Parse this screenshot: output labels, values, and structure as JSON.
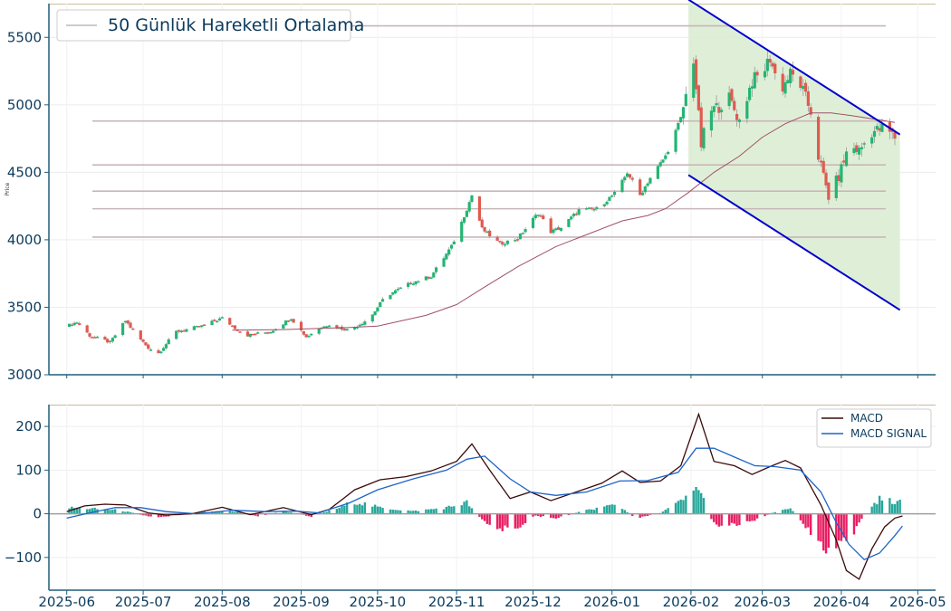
{
  "chart_data": [
    {
      "type": "candlestick",
      "ylabel": "Price",
      "ylim": [
        3000,
        5750
      ],
      "yticks": [
        3000,
        3500,
        4000,
        4500,
        5000,
        5500
      ],
      "ytick_labels": [
        "3000",
        "3500",
        "4000",
        "4500",
        "5000",
        "5500"
      ],
      "legend": {
        "label": "50 Günlük Hareketli Ortalama",
        "position": "top-left"
      },
      "grid": true,
      "colors": {
        "up": "#22b573",
        "down": "#e05a4f",
        "ma": "#a0506a",
        "channel": "#0000cc",
        "channel_fill": "#dcedd3",
        "level_line": "#c9b6b9",
        "axis": "#1f5f7a"
      },
      "horizontal_levels": [
        5585,
        4880,
        4555,
        4360,
        4230,
        4020
      ],
      "channel": {
        "upper": [
          {
            "x": "2026-01-31",
            "y": 5780
          },
          {
            "x": "2026-04-24",
            "y": 4780
          }
        ],
        "lower": [
          {
            "x": "2026-01-31",
            "y": 4480
          },
          {
            "x": "2026-04-24",
            "y": 3480
          }
        ]
      },
      "keypoints": [
        {
          "x": "2025-06-01",
          "y": 3360
        },
        {
          "x": "2025-06-05",
          "y": 3390
        },
        {
          "x": "2025-06-10",
          "y": 3290
        },
        {
          "x": "2025-06-18",
          "y": 3240
        },
        {
          "x": "2025-06-24",
          "y": 3400
        },
        {
          "x": "2025-06-29",
          "y": 3280
        },
        {
          "x": "2025-07-03",
          "y": 3200
        },
        {
          "x": "2025-07-07",
          "y": 3160
        },
        {
          "x": "2025-07-14",
          "y": 3320
        },
        {
          "x": "2025-07-24",
          "y": 3360
        },
        {
          "x": "2025-08-01",
          "y": 3420
        },
        {
          "x": "2025-08-10",
          "y": 3290
        },
        {
          "x": "2025-08-20",
          "y": 3320
        },
        {
          "x": "2025-08-28",
          "y": 3420
        },
        {
          "x": "2025-09-03",
          "y": 3280
        },
        {
          "x": "2025-09-10",
          "y": 3370
        },
        {
          "x": "2025-09-20",
          "y": 3330
        },
        {
          "x": "2025-09-28",
          "y": 3420
        },
        {
          "x": "2025-10-04",
          "y": 3580
        },
        {
          "x": "2025-10-14",
          "y": 3680
        },
        {
          "x": "2025-10-22",
          "y": 3730
        },
        {
          "x": "2025-10-30",
          "y": 3950
        },
        {
          "x": "2025-11-03",
          "y": 4130
        },
        {
          "x": "2025-11-07",
          "y": 4330
        },
        {
          "x": "2025-11-11",
          "y": 4080
        },
        {
          "x": "2025-11-18",
          "y": 3970
        },
        {
          "x": "2025-11-25",
          "y": 4010
        },
        {
          "x": "2025-12-03",
          "y": 4200
        },
        {
          "x": "2025-12-08",
          "y": 4060
        },
        {
          "x": "2025-12-12",
          "y": 4090
        },
        {
          "x": "2025-12-19",
          "y": 4220
        },
        {
          "x": "2025-12-26",
          "y": 4230
        },
        {
          "x": "2026-01-03",
          "y": 4360
        },
        {
          "x": "2026-01-07",
          "y": 4500
        },
        {
          "x": "2026-01-12",
          "y": 4330
        },
        {
          "x": "2026-01-16",
          "y": 4460
        },
        {
          "x": "2026-01-22",
          "y": 4620
        },
        {
          "x": "2026-01-28",
          "y": 4900
        },
        {
          "x": "2026-01-31",
          "y": 5150
        },
        {
          "x": "2026-02-02",
          "y": 5340
        },
        {
          "x": "2026-02-05",
          "y": 4700
        },
        {
          "x": "2026-02-08",
          "y": 4950
        },
        {
          "x": "2026-02-12",
          "y": 4990
        },
        {
          "x": "2026-02-16",
          "y": 5050
        },
        {
          "x": "2026-02-20",
          "y": 4880
        },
        {
          "x": "2026-02-25",
          "y": 5180
        },
        {
          "x": "2026-03-01",
          "y": 5230
        },
        {
          "x": "2026-03-04",
          "y": 5350
        },
        {
          "x": "2026-03-08",
          "y": 5100
        },
        {
          "x": "2026-03-12",
          "y": 5230
        },
        {
          "x": "2026-03-16",
          "y": 5150
        },
        {
          "x": "2026-03-20",
          "y": 4950
        },
        {
          "x": "2026-03-23",
          "y": 4620
        },
        {
          "x": "2026-03-27",
          "y": 4320
        },
        {
          "x": "2026-03-31",
          "y": 4470
        },
        {
          "x": "2026-04-04",
          "y": 4700
        },
        {
          "x": "2026-04-08",
          "y": 4660
        },
        {
          "x": "2026-04-13",
          "y": 4800
        },
        {
          "x": "2026-04-18",
          "y": 4830
        },
        {
          "x": "2026-04-22",
          "y": 4760
        }
      ],
      "ma_points": [
        {
          "x": "2025-08-05",
          "y": 3330
        },
        {
          "x": "2025-08-25",
          "y": 3335
        },
        {
          "x": "2025-09-20",
          "y": 3350
        },
        {
          "x": "2025-10-01",
          "y": 3360
        },
        {
          "x": "2025-10-20",
          "y": 3440
        },
        {
          "x": "2025-11-01",
          "y": 3520
        },
        {
          "x": "2025-11-12",
          "y": 3650
        },
        {
          "x": "2025-11-25",
          "y": 3800
        },
        {
          "x": "2025-12-10",
          "y": 3950
        },
        {
          "x": "2025-12-25",
          "y": 4060
        },
        {
          "x": "2026-01-05",
          "y": 4140
        },
        {
          "x": "2026-01-15",
          "y": 4180
        },
        {
          "x": "2026-01-22",
          "y": 4230
        },
        {
          "x": "2026-01-31",
          "y": 4350
        },
        {
          "x": "2026-02-10",
          "y": 4500
        },
        {
          "x": "2026-02-20",
          "y": 4620
        },
        {
          "x": "2026-03-01",
          "y": 4760
        },
        {
          "x": "2026-03-10",
          "y": 4860
        },
        {
          "x": "2026-03-20",
          "y": 4940
        },
        {
          "x": "2026-03-28",
          "y": 4940
        },
        {
          "x": "2026-04-05",
          "y": 4920
        },
        {
          "x": "2026-04-12",
          "y": 4900
        },
        {
          "x": "2026-04-22",
          "y": 4870
        }
      ]
    },
    {
      "type": "line+bar",
      "ylim": [
        -175,
        250
      ],
      "yticks": [
        -100,
        0,
        100,
        200
      ],
      "ytick_labels": [
        "−100",
        "0",
        "100",
        "200"
      ],
      "xlim": [
        "2025-05-25",
        "2026-05-08"
      ],
      "xticks": [
        "2025-06-01",
        "2025-07-01",
        "2025-08-01",
        "2025-09-01",
        "2025-10-01",
        "2025-11-01",
        "2025-12-01",
        "2026-01-01",
        "2026-02-01",
        "2026-03-01",
        "2026-04-01",
        "2026-05-01"
      ],
      "xtick_labels": [
        "2025-06",
        "2025-07",
        "2025-08",
        "2025-09",
        "2025-10",
        "2025-11",
        "2025-12",
        "2026-01",
        "2026-02",
        "2026-03",
        "2026-04",
        "2026-05"
      ],
      "legend": {
        "position": "top-right"
      },
      "series": [
        {
          "name": "MACD",
          "color": "#3a0a0a",
          "points": [
            {
              "x": "2025-06-01",
              "y": 5
            },
            {
              "x": "2025-06-08",
              "y": 18
            },
            {
              "x": "2025-06-16",
              "y": 22
            },
            {
              "x": "2025-06-24",
              "y": 20
            },
            {
              "x": "2025-07-03",
              "y": 2
            },
            {
              "x": "2025-07-10",
              "y": -3
            },
            {
              "x": "2025-07-20",
              "y": 0
            },
            {
              "x": "2025-08-01",
              "y": 15
            },
            {
              "x": "2025-08-12",
              "y": -2
            },
            {
              "x": "2025-08-25",
              "y": 14
            },
            {
              "x": "2025-09-05",
              "y": -2
            },
            {
              "x": "2025-09-12",
              "y": 10
            },
            {
              "x": "2025-09-22",
              "y": 55
            },
            {
              "x": "2025-10-02",
              "y": 78
            },
            {
              "x": "2025-10-12",
              "y": 85
            },
            {
              "x": "2025-10-22",
              "y": 98
            },
            {
              "x": "2025-11-01",
              "y": 120
            },
            {
              "x": "2025-11-07",
              "y": 160
            },
            {
              "x": "2025-11-14",
              "y": 100
            },
            {
              "x": "2025-11-22",
              "y": 35
            },
            {
              "x": "2025-11-30",
              "y": 50
            },
            {
              "x": "2025-12-08",
              "y": 30
            },
            {
              "x": "2025-12-18",
              "y": 50
            },
            {
              "x": "2025-12-28",
              "y": 70
            },
            {
              "x": "2026-01-05",
              "y": 98
            },
            {
              "x": "2026-01-12",
              "y": 72
            },
            {
              "x": "2026-01-20",
              "y": 75
            },
            {
              "x": "2026-01-28",
              "y": 110
            },
            {
              "x": "2026-02-04",
              "y": 228
            },
            {
              "x": "2026-02-10",
              "y": 120
            },
            {
              "x": "2026-02-18",
              "y": 110
            },
            {
              "x": "2026-02-25",
              "y": 90
            },
            {
              "x": "2026-03-04",
              "y": 108
            },
            {
              "x": "2026-03-10",
              "y": 122
            },
            {
              "x": "2026-03-16",
              "y": 105
            },
            {
              "x": "2026-03-24",
              "y": 20
            },
            {
              "x": "2026-03-30",
              "y": -60
            },
            {
              "x": "2026-04-03",
              "y": -130
            },
            {
              "x": "2026-04-08",
              "y": -150
            },
            {
              "x": "2026-04-13",
              "y": -80
            },
            {
              "x": "2026-04-18",
              "y": -30
            },
            {
              "x": "2026-04-22",
              "y": -10
            },
            {
              "x": "2026-04-25",
              "y": -5
            }
          ]
        },
        {
          "name": "MACD SIGNAL",
          "color": "#1e63c8",
          "points": [
            {
              "x": "2025-06-01",
              "y": -10
            },
            {
              "x": "2025-06-10",
              "y": 2
            },
            {
              "x": "2025-06-20",
              "y": 14
            },
            {
              "x": "2025-06-30",
              "y": 14
            },
            {
              "x": "2025-07-10",
              "y": 5
            },
            {
              "x": "2025-07-22",
              "y": 0
            },
            {
              "x": "2025-08-05",
              "y": 8
            },
            {
              "x": "2025-08-18",
              "y": 5
            },
            {
              "x": "2025-08-30",
              "y": 6
            },
            {
              "x": "2025-09-08",
              "y": 2
            },
            {
              "x": "2025-09-20",
              "y": 25
            },
            {
              "x": "2025-10-01",
              "y": 55
            },
            {
              "x": "2025-10-15",
              "y": 80
            },
            {
              "x": "2025-10-28",
              "y": 100
            },
            {
              "x": "2025-11-05",
              "y": 125
            },
            {
              "x": "2025-11-12",
              "y": 132
            },
            {
              "x": "2025-11-22",
              "y": 80
            },
            {
              "x": "2025-11-30",
              "y": 50
            },
            {
              "x": "2025-12-10",
              "y": 42
            },
            {
              "x": "2025-12-22",
              "y": 50
            },
            {
              "x": "2026-01-04",
              "y": 75
            },
            {
              "x": "2026-01-15",
              "y": 76
            },
            {
              "x": "2026-01-27",
              "y": 95
            },
            {
              "x": "2026-02-03",
              "y": 150
            },
            {
              "x": "2026-02-10",
              "y": 150
            },
            {
              "x": "2026-02-18",
              "y": 130
            },
            {
              "x": "2026-02-26",
              "y": 110
            },
            {
              "x": "2026-03-06",
              "y": 108
            },
            {
              "x": "2026-03-16",
              "y": 100
            },
            {
              "x": "2026-03-24",
              "y": 50
            },
            {
              "x": "2026-03-30",
              "y": -20
            },
            {
              "x": "2026-04-04",
              "y": -70
            },
            {
              "x": "2026-04-10",
              "y": -105
            },
            {
              "x": "2026-04-16",
              "y": -90
            },
            {
              "x": "2026-04-22",
              "y": -50
            },
            {
              "x": "2026-04-25",
              "y": -28
            }
          ]
        }
      ],
      "histogram": {
        "colors": {
          "positive": "#26a69a",
          "negative": "#e91e63"
        },
        "envelope": [
          {
            "x": "2025-06-01",
            "y": 14
          },
          {
            "x": "2025-06-10",
            "y": 12
          },
          {
            "x": "2025-06-22",
            "y": 8
          },
          {
            "x": "2025-07-05",
            "y": -8
          },
          {
            "x": "2025-07-15",
            "y": -3
          },
          {
            "x": "2025-07-25",
            "y": 4
          },
          {
            "x": "2025-08-05",
            "y": 6
          },
          {
            "x": "2025-08-15",
            "y": -6
          },
          {
            "x": "2025-08-25",
            "y": 6
          },
          {
            "x": "2025-09-05",
            "y": -6
          },
          {
            "x": "2025-09-15",
            "y": 12
          },
          {
            "x": "2025-09-22",
            "y": 28
          },
          {
            "x": "2025-10-02",
            "y": 14
          },
          {
            "x": "2025-10-15",
            "y": 6
          },
          {
            "x": "2025-10-28",
            "y": 14
          },
          {
            "x": "2025-11-05",
            "y": 26
          },
          {
            "x": "2025-11-08",
            "y": 5
          },
          {
            "x": "2025-11-16",
            "y": -38
          },
          {
            "x": "2025-11-24",
            "y": -32
          },
          {
            "x": "2025-12-02",
            "y": -5
          },
          {
            "x": "2025-12-10",
            "y": -10
          },
          {
            "x": "2025-12-22",
            "y": 8
          },
          {
            "x": "2026-01-03",
            "y": 22
          },
          {
            "x": "2026-01-10",
            "y": -10
          },
          {
            "x": "2026-01-20",
            "y": 2
          },
          {
            "x": "2026-01-30",
            "y": 35
          },
          {
            "x": "2026-02-04",
            "y": 62
          },
          {
            "x": "2026-02-10",
            "y": -25
          },
          {
            "x": "2026-02-22",
            "y": -22
          },
          {
            "x": "2026-03-04",
            "y": 0
          },
          {
            "x": "2026-03-12",
            "y": 14
          },
          {
            "x": "2026-03-20",
            "y": -40
          },
          {
            "x": "2026-03-28",
            "y": -88
          },
          {
            "x": "2026-04-04",
            "y": -60
          },
          {
            "x": "2026-04-10",
            "y": 0
          },
          {
            "x": "2026-04-16",
            "y": 34
          },
          {
            "x": "2026-04-24",
            "y": 26
          }
        ]
      }
    }
  ]
}
